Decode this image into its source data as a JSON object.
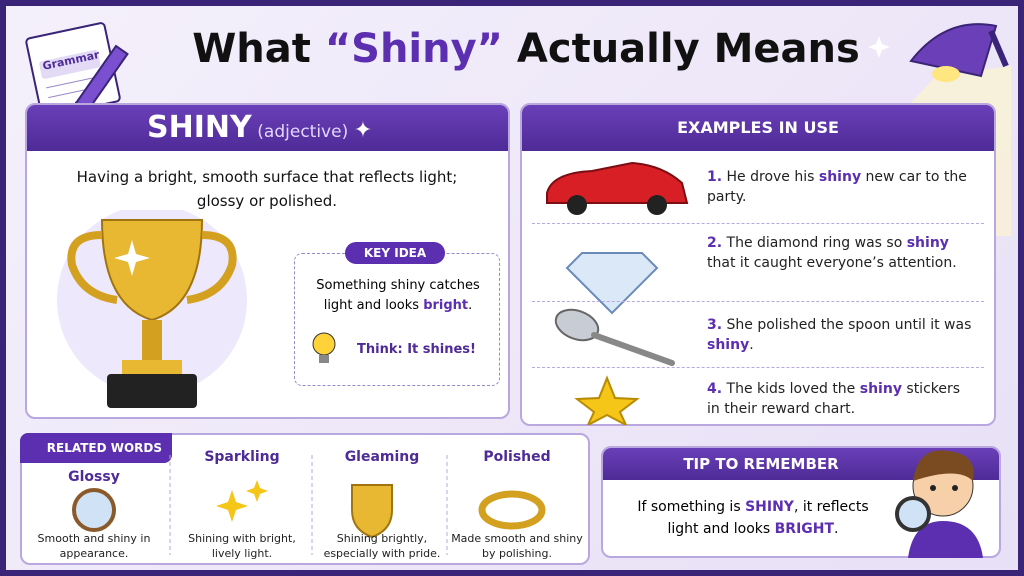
{
  "header": {
    "notebook_label": "Grammar",
    "title": {
      "pre": "What",
      "highlight": "“Shiny”",
      "post": "Actually Means"
    }
  },
  "definition": {
    "word": "SHINY",
    "part_of_speech": "(adjective)",
    "text": "Having a bright, smooth surface that reflects light; glossy or polished.",
    "key_idea": {
      "label": "KEY IDEA",
      "text": {
        "pre": "Something shiny catches light and looks ",
        "highlight": "bright",
        "post": "."
      },
      "think": "Think: It shines!"
    }
  },
  "examples": {
    "heading": "EXAMPLES IN USE",
    "items": [
      {
        "number": "1.",
        "pre": "He drove his ",
        "highlight": "shiny",
        "post": " new car to the party."
      },
      {
        "number": "2.",
        "pre": "The diamond ring was so ",
        "highlight": "shiny",
        "post": " that it caught everyone’s attention."
      },
      {
        "number": "3.",
        "pre": "She polished the spoon until it was ",
        "highlight": "shiny",
        "post": "."
      },
      {
        "number": "4.",
        "pre": "The kids loved the ",
        "highlight": "shiny",
        "post": " stickers in their reward chart."
      }
    ]
  },
  "related": {
    "heading": "RELATED WORDS",
    "words": [
      {
        "word": "Glossy",
        "definition": "Smooth and shiny in appearance."
      },
      {
        "word": "Sparkling",
        "definition": "Shining with bright, lively light."
      },
      {
        "word": "Gleaming",
        "definition": "Shining brightly, especially with pride."
      },
      {
        "word": "Polished",
        "definition": "Made smooth and shiny by polishing."
      }
    ]
  },
  "tip": {
    "heading": "TIP TO REMEMBER",
    "pre": "If something is ",
    "word1": "SHINY",
    "mid": ", it reflects light and looks ",
    "word2": "BRIGHT",
    "post": "."
  }
}
